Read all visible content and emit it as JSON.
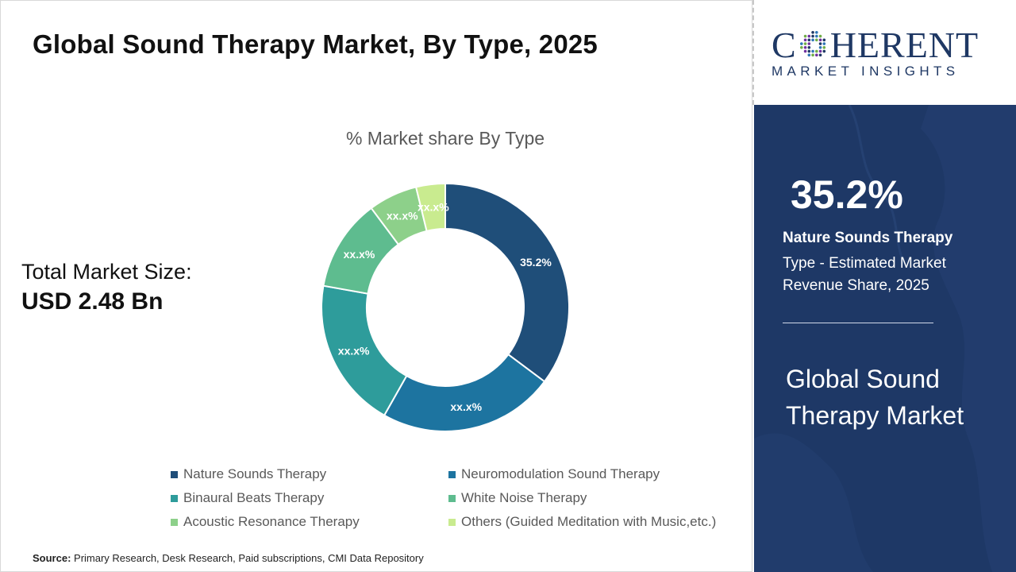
{
  "header": {
    "title": "Global Sound Therapy Market, By Type, 2025"
  },
  "market_size": {
    "label": "Total Market Size:",
    "value": "USD 2.48 Bn"
  },
  "chart_data": {
    "type": "pie",
    "donut": true,
    "title": "% Market share By Type",
    "legend_position": "bottom",
    "categories": [
      "Nature Sounds Therapy",
      "Neuromodulation Sound Therapy",
      "Binaural Beats Therapy",
      "White Noise Therapy",
      "Acoustic Resonance Therapy",
      "Others (Guided Meditation with Music,etc.)"
    ],
    "values": [
      35.2,
      23.0,
      19.6,
      12.0,
      6.4,
      3.8
    ],
    "data_labels": [
      "35.2%",
      "xx.x%",
      "xx.x%",
      "xx.x%",
      "xx.x%",
      "xx.x%"
    ],
    "colors": [
      "#1f4e79",
      "#1d74a0",
      "#2e9c9b",
      "#5ebc8f",
      "#8dd08a",
      "#c9eb8f"
    ]
  },
  "source": {
    "label": "Source:",
    "text": " Primary Research, Desk Research, Paid subscriptions, CMI Data Repository"
  },
  "logo": {
    "word_start": "C",
    "word_end": "HERENT",
    "subtitle": "MARKET INSIGHTS",
    "color": "#1f3864"
  },
  "highlight": {
    "value": "35.2%",
    "segment_name": "Nature Sounds Therapy",
    "description": "Type - Estimated Market Revenue Share, 2025",
    "market_name": "Global Sound Therapy Market",
    "panel_color": "#1e3866"
  }
}
